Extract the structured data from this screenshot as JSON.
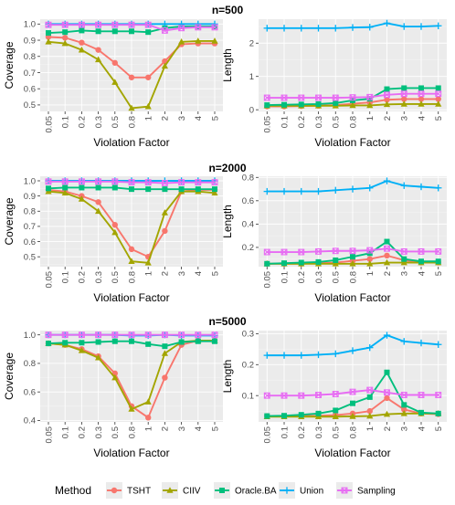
{
  "legend": {
    "title": "Method",
    "position": "bottom",
    "items": [
      {
        "name": "TSHT",
        "color": "#F8766D",
        "shape": "circle"
      },
      {
        "name": "CIIV",
        "color": "#A3A500",
        "shape": "triangle"
      },
      {
        "name": "Oracle.BA",
        "color": "#00BF7D",
        "shape": "square"
      },
      {
        "name": "Union",
        "color": "#00B0F6",
        "shape": "plus"
      },
      {
        "name": "Sampling",
        "color": "#E76BF3",
        "shape": "square-x"
      }
    ]
  },
  "chart_data": [
    {
      "type": "line",
      "row_title": "n=500",
      "xlabel": "Violation Factor",
      "ylabel": "Coverage",
      "categories": [
        "0.05",
        "0.1",
        "0.2",
        "0.3",
        "0.5",
        "0.8",
        "1",
        "2",
        "3",
        "4",
        "5"
      ],
      "ylim": [
        0.46,
        1.03
      ],
      "yticks": [
        0.5,
        0.6,
        0.7,
        0.8,
        0.9,
        1.0
      ],
      "ytick_labels": [
        "0.5",
        "0.6",
        "0.7",
        "0.8",
        "0.9",
        "1.0"
      ],
      "grid": true,
      "series": [
        {
          "name": "TSHT",
          "values": [
            0.92,
            0.915,
            0.885,
            0.84,
            0.76,
            0.67,
            0.67,
            0.77,
            0.875,
            0.88,
            0.88
          ]
        },
        {
          "name": "CIIV",
          "values": [
            0.89,
            0.88,
            0.84,
            0.78,
            0.64,
            0.48,
            0.49,
            0.74,
            0.89,
            0.895,
            0.895
          ]
        },
        {
          "name": "Oracle.BA",
          "values": [
            0.945,
            0.95,
            0.96,
            0.955,
            0.955,
            0.955,
            0.95,
            0.975,
            0.985,
            0.985,
            0.985
          ]
        },
        {
          "name": "Union",
          "values": [
            1.0,
            1.0,
            1.0,
            1.0,
            1.0,
            1.0,
            1.0,
            1.0,
            1.0,
            1.0,
            1.0
          ]
        },
        {
          "name": "Sampling",
          "values": [
            0.995,
            0.995,
            0.995,
            0.995,
            0.995,
            0.995,
            0.995,
            0.96,
            0.975,
            0.98,
            0.98
          ]
        }
      ]
    },
    {
      "type": "line",
      "row_title": "",
      "xlabel": "Violation Factor",
      "ylabel": "Length",
      "categories": [
        "0.05",
        "0.1",
        "0.2",
        "0.3",
        "0.5",
        "0.8",
        "1",
        "2",
        "3",
        "4",
        "5"
      ],
      "ylim": [
        -0.05,
        2.72
      ],
      "yticks": [
        0,
        1,
        2
      ],
      "ytick_labels": [
        "0",
        "1",
        "2"
      ],
      "grid": true,
      "series": [
        {
          "name": "TSHT",
          "values": [
            0.1,
            0.1,
            0.11,
            0.12,
            0.14,
            0.18,
            0.22,
            0.3,
            0.32,
            0.32,
            0.32
          ]
        },
        {
          "name": "CIIV",
          "values": [
            0.12,
            0.12,
            0.12,
            0.12,
            0.12,
            0.13,
            0.13,
            0.16,
            0.17,
            0.17,
            0.17
          ]
        },
        {
          "name": "Oracle.BA",
          "values": [
            0.14,
            0.15,
            0.16,
            0.17,
            0.2,
            0.28,
            0.33,
            0.62,
            0.65,
            0.65,
            0.65
          ]
        },
        {
          "name": "Union",
          "values": [
            2.45,
            2.45,
            2.45,
            2.45,
            2.45,
            2.47,
            2.48,
            2.6,
            2.5,
            2.5,
            2.52
          ]
        },
        {
          "name": "Sampling",
          "values": [
            0.36,
            0.36,
            0.36,
            0.36,
            0.36,
            0.37,
            0.38,
            0.45,
            0.48,
            0.48,
            0.48
          ]
        }
      ]
    },
    {
      "type": "line",
      "row_title": "n=2000",
      "xlabel": "Violation Factor",
      "ylabel": "Coverage",
      "categories": [
        "0.05",
        "0.1",
        "0.2",
        "0.3",
        "0.5",
        "0.8",
        "1",
        "2",
        "3",
        "4",
        "5"
      ],
      "ylim": [
        0.435,
        1.03
      ],
      "yticks": [
        0.5,
        0.6,
        0.7,
        0.8,
        0.9,
        1.0
      ],
      "ytick_labels": [
        "0.5",
        "0.6",
        "0.7",
        "0.8",
        "0.9",
        "1.0"
      ],
      "grid": true,
      "series": [
        {
          "name": "TSHT",
          "values": [
            0.94,
            0.93,
            0.9,
            0.86,
            0.71,
            0.55,
            0.5,
            0.67,
            0.93,
            0.94,
            0.94
          ]
        },
        {
          "name": "CIIV",
          "values": [
            0.93,
            0.92,
            0.88,
            0.8,
            0.66,
            0.47,
            0.46,
            0.79,
            0.93,
            0.93,
            0.92
          ]
        },
        {
          "name": "Oracle.BA",
          "values": [
            0.95,
            0.955,
            0.955,
            0.955,
            0.955,
            0.945,
            0.945,
            0.945,
            0.945,
            0.945,
            0.945
          ]
        },
        {
          "name": "Union",
          "values": [
            1.0,
            1.0,
            1.0,
            1.0,
            1.0,
            1.0,
            1.0,
            1.0,
            1.0,
            1.0,
            1.0
          ]
        },
        {
          "name": "Sampling",
          "values": [
            0.995,
            0.995,
            0.995,
            0.995,
            0.995,
            0.99,
            0.99,
            0.985,
            0.99,
            0.99,
            0.99
          ]
        }
      ]
    },
    {
      "type": "line",
      "row_title": "",
      "xlabel": "Violation Factor",
      "ylabel": "Length",
      "categories": [
        "0.05",
        "0.1",
        "0.2",
        "0.3",
        "0.5",
        "0.8",
        "1",
        "2",
        "3",
        "4",
        "5"
      ],
      "ylim": [
        0.035,
        0.81
      ],
      "yticks": [
        0.2,
        0.4,
        0.6,
        0.8
      ],
      "ytick_labels": [
        "0.2",
        "0.4",
        "0.6",
        "0.8"
      ],
      "grid": true,
      "series": [
        {
          "name": "TSHT",
          "values": [
            0.06,
            0.06,
            0.06,
            0.065,
            0.07,
            0.085,
            0.1,
            0.13,
            0.09,
            0.07,
            0.07
          ]
        },
        {
          "name": "CIIV",
          "values": [
            0.06,
            0.06,
            0.06,
            0.06,
            0.06,
            0.06,
            0.06,
            0.07,
            0.07,
            0.07,
            0.07
          ]
        },
        {
          "name": "Oracle.BA",
          "values": [
            0.06,
            0.065,
            0.07,
            0.075,
            0.09,
            0.12,
            0.15,
            0.25,
            0.1,
            0.08,
            0.08
          ]
        },
        {
          "name": "Union",
          "values": [
            0.68,
            0.68,
            0.68,
            0.68,
            0.69,
            0.7,
            0.71,
            0.77,
            0.73,
            0.72,
            0.71
          ]
        },
        {
          "name": "Sampling",
          "values": [
            0.16,
            0.16,
            0.16,
            0.165,
            0.17,
            0.17,
            0.175,
            0.19,
            0.165,
            0.165,
            0.165
          ]
        }
      ]
    },
    {
      "type": "line",
      "row_title": "n=5000",
      "xlabel": "Violation Factor",
      "ylabel": "Coverage",
      "categories": [
        "0.05",
        "0.1",
        "0.2",
        "0.3",
        "0.5",
        "0.8",
        "1",
        "2",
        "3",
        "4",
        "5"
      ],
      "ylim": [
        0.39,
        1.03
      ],
      "yticks": [
        0.4,
        0.6,
        0.8,
        1.0
      ],
      "ytick_labels": [
        "0.4",
        "0.6",
        "0.8",
        "1.0"
      ],
      "grid": true,
      "series": [
        {
          "name": "TSHT",
          "values": [
            0.94,
            0.93,
            0.9,
            0.85,
            0.73,
            0.5,
            0.42,
            0.7,
            0.93,
            0.96,
            0.96
          ]
        },
        {
          "name": "CIIV",
          "values": [
            0.94,
            0.93,
            0.89,
            0.84,
            0.7,
            0.48,
            0.53,
            0.87,
            0.95,
            0.96,
            0.96
          ]
        },
        {
          "name": "Oracle.BA",
          "values": [
            0.94,
            0.945,
            0.945,
            0.95,
            0.955,
            0.955,
            0.935,
            0.92,
            0.95,
            0.955,
            0.955
          ]
        },
        {
          "name": "Union",
          "values": [
            1.0,
            1.0,
            1.0,
            1.0,
            1.0,
            0.995,
            0.995,
            1.0,
            0.995,
            0.995,
            0.995
          ]
        },
        {
          "name": "Sampling",
          "values": [
            1.0,
            1.0,
            1.0,
            1.0,
            1.0,
            1.0,
            1.0,
            1.0,
            1.0,
            1.0,
            1.0
          ]
        }
      ]
    },
    {
      "type": "line",
      "row_title": "",
      "xlabel": "Violation Factor",
      "ylabel": "Length",
      "categories": [
        "0.05",
        "0.1",
        "0.2",
        "0.3",
        "0.5",
        "0.8",
        "1",
        "2",
        "3",
        "4",
        "5"
      ],
      "ylim": [
        0.015,
        0.31
      ],
      "yticks": [
        0.1,
        0.2,
        0.3
      ],
      "ytick_labels": [
        "0.1",
        "0.2",
        "0.3"
      ],
      "grid": true,
      "series": [
        {
          "name": "TSHT",
          "values": [
            0.034,
            0.034,
            0.034,
            0.035,
            0.037,
            0.042,
            0.05,
            0.092,
            0.055,
            0.042,
            0.04
          ]
        },
        {
          "name": "CIIV",
          "values": [
            0.032,
            0.032,
            0.032,
            0.032,
            0.032,
            0.033,
            0.034,
            0.04,
            0.042,
            0.042,
            0.042
          ]
        },
        {
          "name": "Oracle.BA",
          "values": [
            0.034,
            0.035,
            0.038,
            0.042,
            0.052,
            0.075,
            0.095,
            0.175,
            0.07,
            0.045,
            0.042
          ]
        },
        {
          "name": "Union",
          "values": [
            0.23,
            0.23,
            0.23,
            0.232,
            0.235,
            0.245,
            0.255,
            0.295,
            0.275,
            0.27,
            0.265
          ]
        },
        {
          "name": "Sampling",
          "values": [
            0.1,
            0.1,
            0.1,
            0.102,
            0.105,
            0.112,
            0.118,
            0.11,
            0.102,
            0.102,
            0.102
          ]
        }
      ]
    }
  ]
}
